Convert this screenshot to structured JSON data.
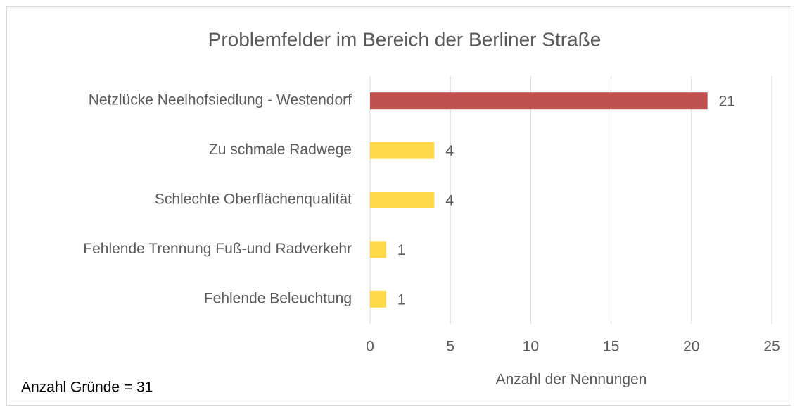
{
  "chart_data": {
    "type": "barh",
    "title": "Problemfelder im Bereich der Berliner Straße",
    "categories": [
      "Netzlücke Neelhofsiedlung - Westendorf",
      "Zu schmale Radwege",
      "Schlechte Oberflächenqualität",
      "Fehlende Trennung Fuß-und Radverkehr",
      "Fehlende Beleuchtung"
    ],
    "values": [
      21,
      4,
      4,
      1,
      1
    ],
    "colors": [
      "#c0504d",
      "#ffd94a",
      "#ffd94a",
      "#ffd94a",
      "#ffd94a"
    ],
    "xlabel": "Anzahl der Nennungen",
    "annotation": "Anzahl Gründe = 31",
    "xlim": [
      0,
      25
    ],
    "xticks": [
      0,
      5,
      10,
      15,
      20,
      25
    ],
    "grid": true
  }
}
